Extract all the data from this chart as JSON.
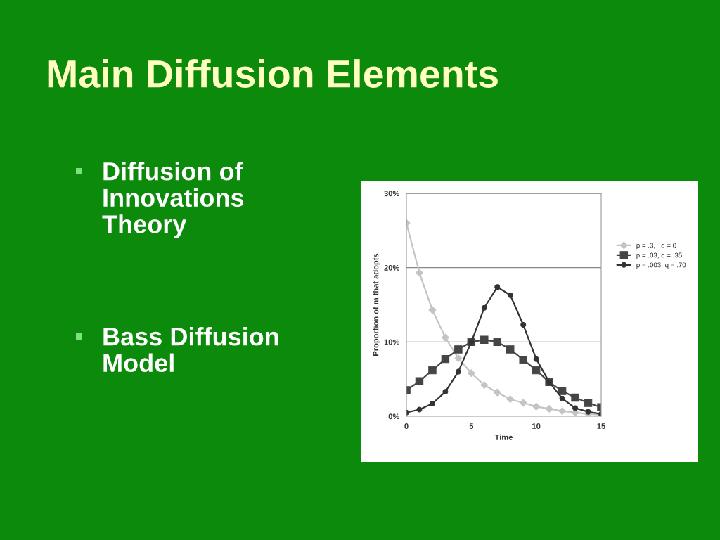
{
  "chart_data": {
    "type": "line",
    "title": "Main Diffusion Elements",
    "annotations": [
      "Diffusion of\nInnovations\nTheory",
      "Bass Diffusion\nModel"
    ],
    "xlabel": "Time",
    "ylabel": "Proportion of m that adopts",
    "x": [
      0,
      1,
      2,
      3,
      4,
      5,
      6,
      7,
      8,
      9,
      10,
      11,
      12,
      13,
      14,
      15
    ],
    "series": [
      {
        "name": "p = .3,   q = 0",
        "color": "#c4c4c4",
        "marker": "diamond",
        "values": [
          26.0,
          19.3,
          14.3,
          10.6,
          7.8,
          5.8,
          4.2,
          3.2,
          2.3,
          1.8,
          1.3,
          1.0,
          0.7,
          0.5,
          0.3,
          0.2
        ]
      },
      {
        "name": "p = .03, q = .35",
        "color": "#454545",
        "marker": "square",
        "values": [
          3.5,
          4.7,
          6.2,
          7.7,
          9.0,
          10.0,
          10.3,
          10.0,
          9.0,
          7.6,
          6.2,
          4.6,
          3.4,
          2.5,
          1.8,
          1.2
        ]
      },
      {
        "name": "p = .003, q = .70",
        "color": "#333333",
        "marker": "circle",
        "values": [
          0.5,
          0.9,
          1.7,
          3.3,
          6.0,
          10.0,
          14.6,
          17.4,
          16.3,
          12.3,
          7.7,
          4.6,
          2.4,
          1.1,
          0.6,
          0.3
        ]
      }
    ],
    "xlim": [
      0,
      15
    ],
    "xticks": [
      0,
      5,
      10,
      15
    ],
    "ylim": [
      0,
      30
    ],
    "yticks": [
      {
        "value": 0,
        "label": "0%"
      },
      {
        "value": 10,
        "label": "10%"
      },
      {
        "value": 20,
        "label": "20%"
      },
      {
        "value": 30,
        "label": "30%"
      }
    ],
    "grid": "y",
    "legend": "right"
  }
}
